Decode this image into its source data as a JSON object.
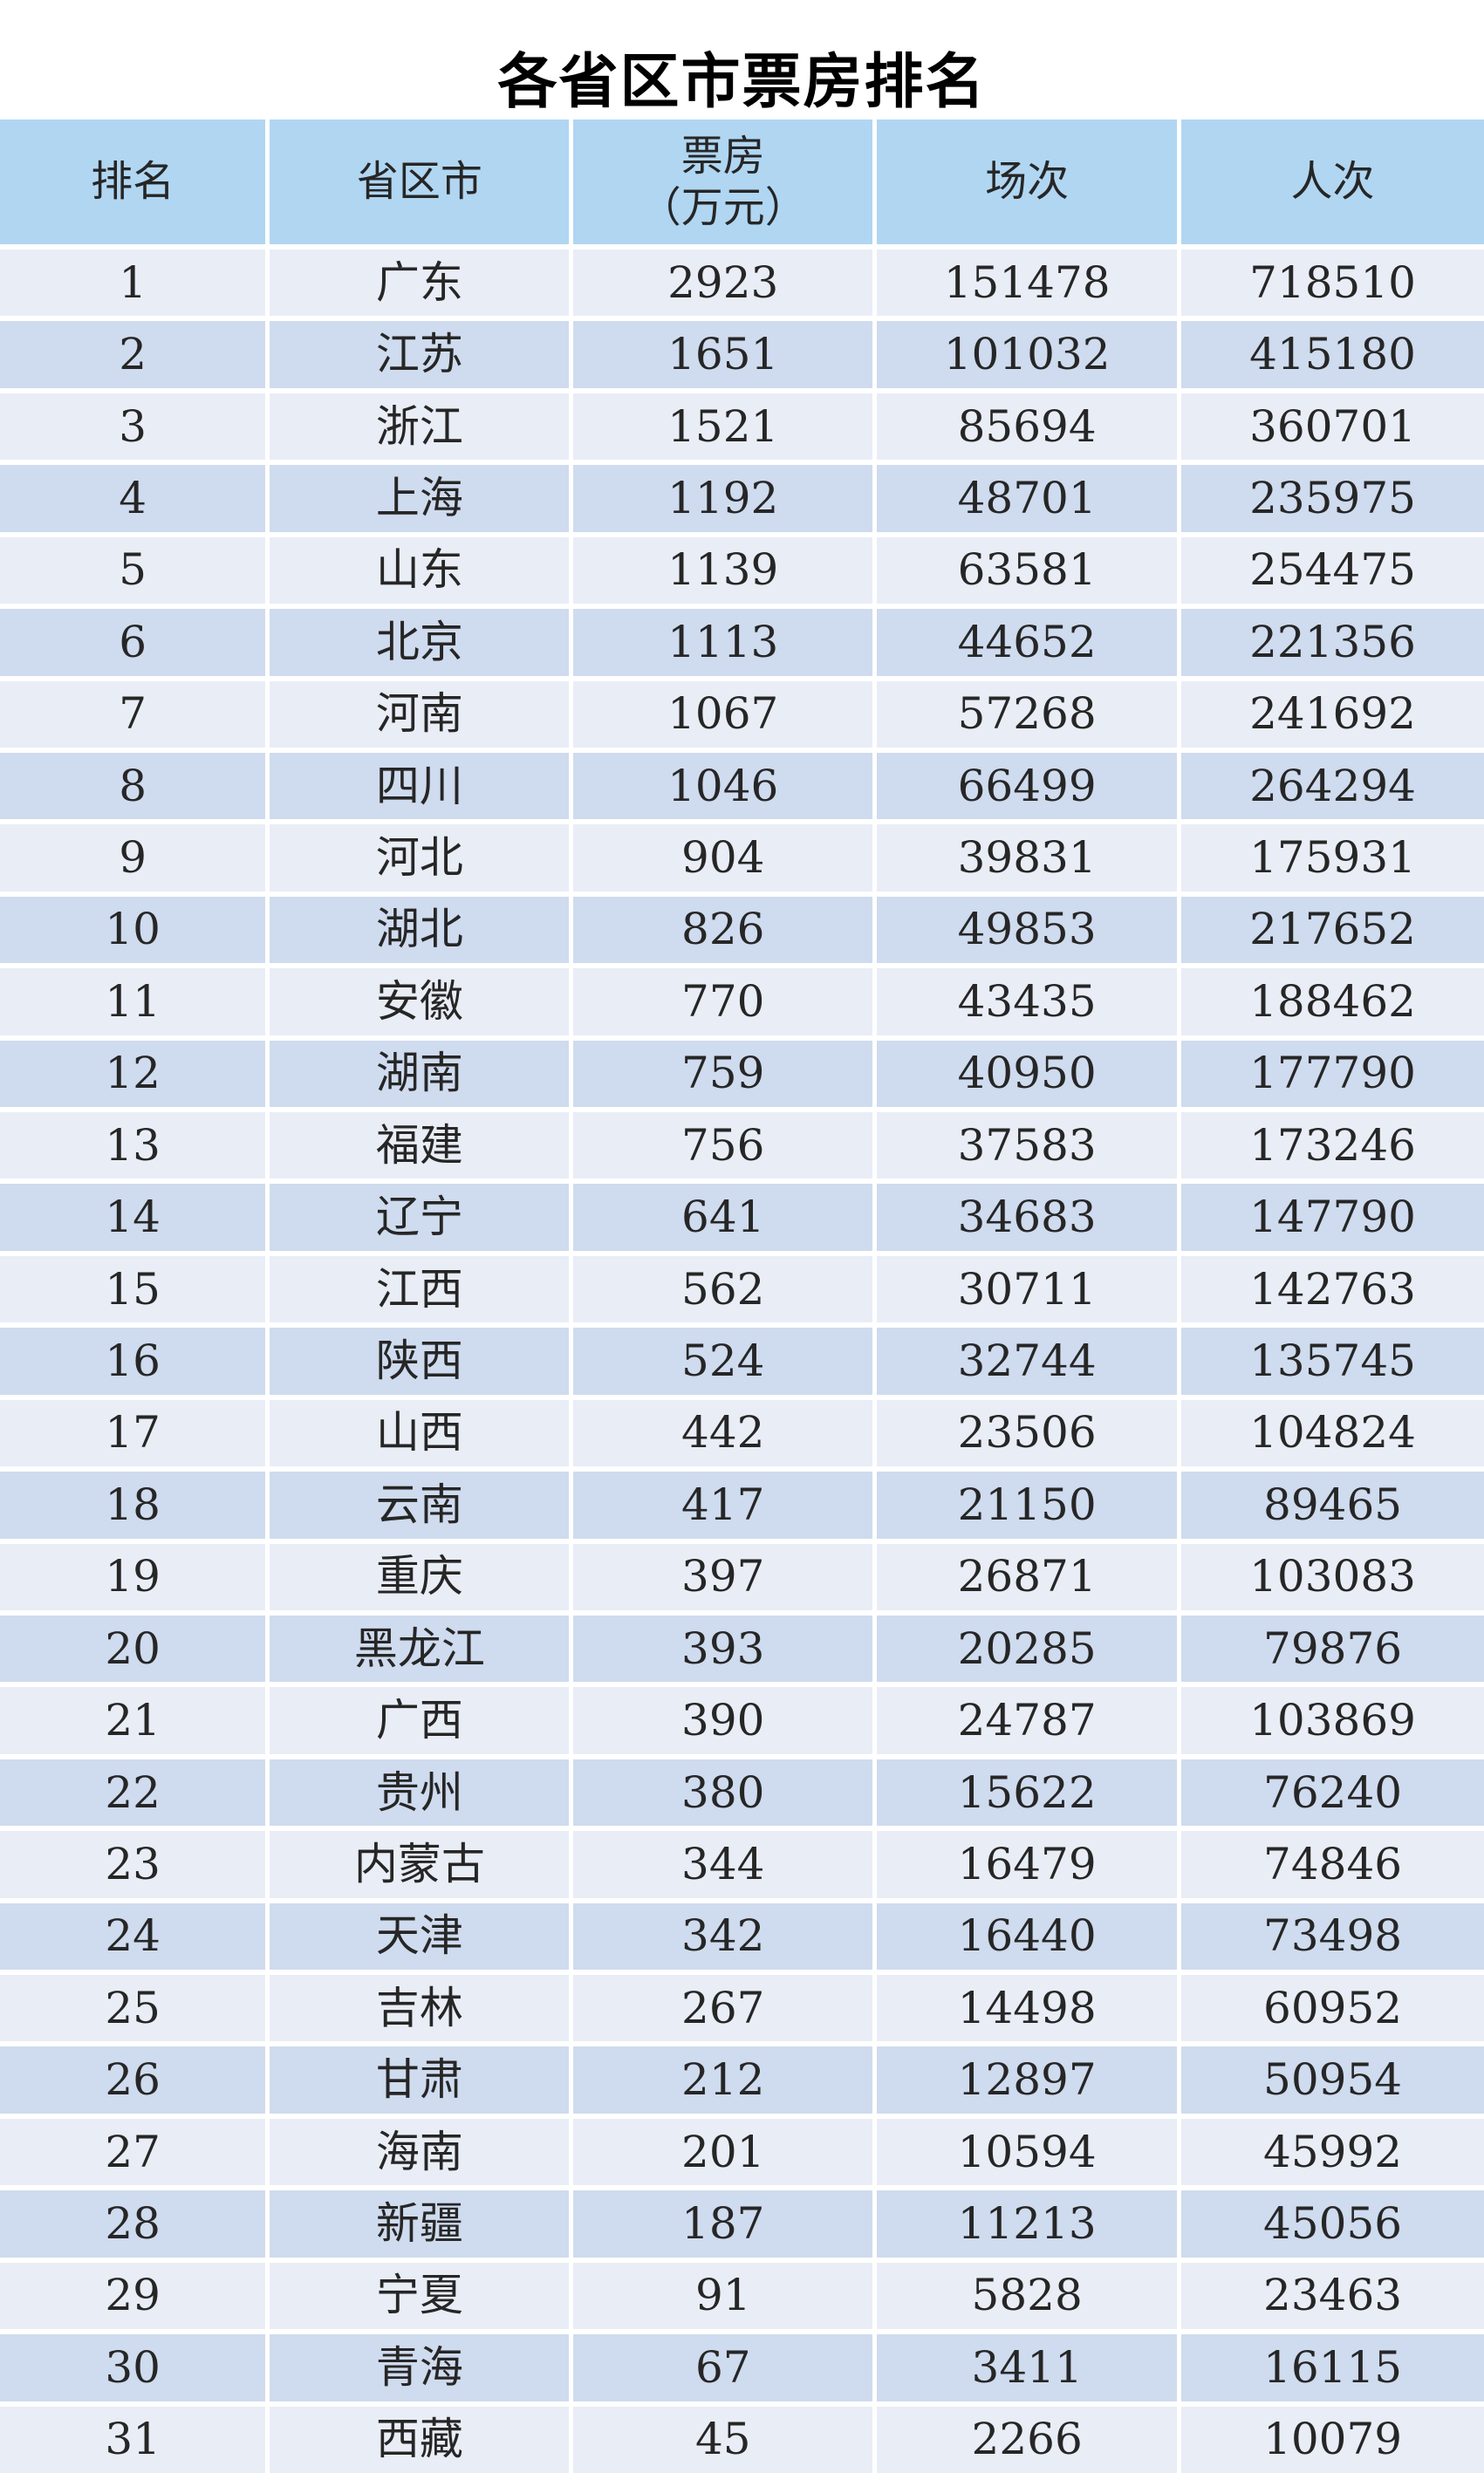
{
  "title": "各省区市票房排名",
  "header": {
    "rank": "排名",
    "region": "省区市",
    "box_office_line1": "票房",
    "box_office_line2": "（万元）",
    "sessions": "场次",
    "attendance": "人次"
  },
  "colors": {
    "title_color": "#000000",
    "text_color": "#262626",
    "header_bg": "#b0d6f2",
    "row_odd_bg": "#e9edf6",
    "row_even_bg": "#cfdbee"
  },
  "chart_data": {
    "type": "table",
    "title": "各省区市票房排名",
    "columns": [
      "排名",
      "省区市",
      "票房（万元）",
      "场次",
      "人次"
    ],
    "rows": [
      [
        1,
        "广东",
        2923,
        151478,
        718510
      ],
      [
        2,
        "江苏",
        1651,
        101032,
        415180
      ],
      [
        3,
        "浙江",
        1521,
        85694,
        360701
      ],
      [
        4,
        "上海",
        1192,
        48701,
        235975
      ],
      [
        5,
        "山东",
        1139,
        63581,
        254475
      ],
      [
        6,
        "北京",
        1113,
        44652,
        221356
      ],
      [
        7,
        "河南",
        1067,
        57268,
        241692
      ],
      [
        8,
        "四川",
        1046,
        66499,
        264294
      ],
      [
        9,
        "河北",
        904,
        39831,
        175931
      ],
      [
        10,
        "湖北",
        826,
        49853,
        217652
      ],
      [
        11,
        "安徽",
        770,
        43435,
        188462
      ],
      [
        12,
        "湖南",
        759,
        40950,
        177790
      ],
      [
        13,
        "福建",
        756,
        37583,
        173246
      ],
      [
        14,
        "辽宁",
        641,
        34683,
        147790
      ],
      [
        15,
        "江西",
        562,
        30711,
        142763
      ],
      [
        16,
        "陕西",
        524,
        32744,
        135745
      ],
      [
        17,
        "山西",
        442,
        23506,
        104824
      ],
      [
        18,
        "云南",
        417,
        21150,
        89465
      ],
      [
        19,
        "重庆",
        397,
        26871,
        103083
      ],
      [
        20,
        "黑龙江",
        393,
        20285,
        79876
      ],
      [
        21,
        "广西",
        390,
        24787,
        103869
      ],
      [
        22,
        "贵州",
        380,
        15622,
        76240
      ],
      [
        23,
        "内蒙古",
        344,
        16479,
        74846
      ],
      [
        24,
        "天津",
        342,
        16440,
        73498
      ],
      [
        25,
        "吉林",
        267,
        14498,
        60952
      ],
      [
        26,
        "甘肃",
        212,
        12897,
        50954
      ],
      [
        27,
        "海南",
        201,
        10594,
        45992
      ],
      [
        28,
        "新疆",
        187,
        11213,
        45056
      ],
      [
        29,
        "宁夏",
        91,
        5828,
        23463
      ],
      [
        30,
        "青海",
        67,
        3411,
        16115
      ],
      [
        31,
        "西藏",
        45,
        2266,
        10079
      ]
    ]
  }
}
